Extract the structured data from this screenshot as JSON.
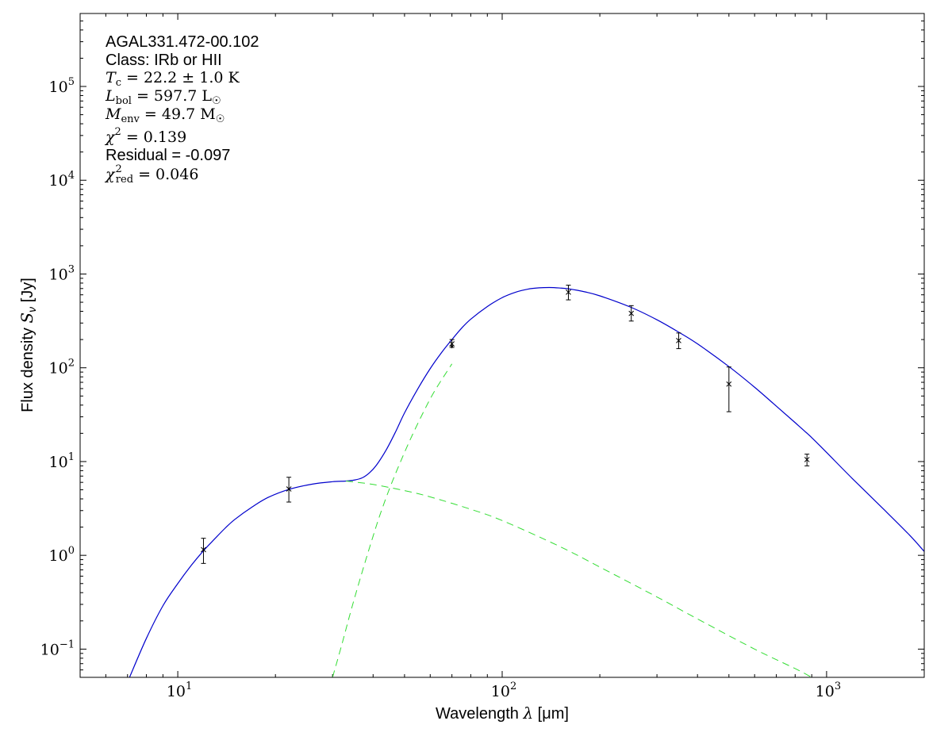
{
  "chart_data": {
    "type": "line",
    "x_scale": "log",
    "y_scale": "log",
    "xlim": [
      5,
      2000
    ],
    "ylim": [
      0.05,
      600000
    ],
    "grid": false,
    "xlabel_text": "Wavelength ",
    "xlabel_symbol": "λ",
    "xlabel_unit": " [μm]",
    "ylabel_text": "Flux density ",
    "ylabel_symbol": "S",
    "ylabel_sub": "ν",
    "ylabel_unit": " [Jy]",
    "x_ticks": [
      {
        "value": 10,
        "base": "10",
        "exp": "1"
      },
      {
        "value": 100,
        "base": "10",
        "exp": "2"
      },
      {
        "value": 1000,
        "base": "10",
        "exp": "3"
      }
    ],
    "y_ticks": [
      {
        "value": 0.1,
        "base": "10",
        "exp": "−1"
      },
      {
        "value": 1,
        "base": "10",
        "exp": "0"
      },
      {
        "value": 10,
        "base": "10",
        "exp": "1"
      },
      {
        "value": 100,
        "base": "10",
        "exp": "2"
      },
      {
        "value": 1000,
        "base": "10",
        "exp": "3"
      },
      {
        "value": 10000,
        "base": "10",
        "exp": "4"
      },
      {
        "value": 100000,
        "base": "10",
        "exp": "5"
      }
    ],
    "colors": {
      "total_fit": "#0000cc",
      "components": "#33dd33",
      "data": "#000000"
    },
    "series": [
      {
        "role": "total-fit",
        "style": "solid",
        "x": [
          7.1,
          8,
          9,
          10,
          11,
          12,
          13,
          14,
          15,
          17,
          19,
          22,
          26,
          30,
          33,
          35,
          37,
          39,
          41,
          44,
          47,
          50,
          55,
          60,
          65,
          70,
          75,
          80,
          90,
          100,
          110,
          120,
          130,
          140,
          150,
          160,
          180,
          200,
          250,
          300,
          350,
          400,
          500,
          600,
          700,
          800,
          900,
          1000,
          1200,
          1500,
          1800,
          2000
        ],
        "y": [
          0.05,
          0.13,
          0.29,
          0.5,
          0.78,
          1.12,
          1.5,
          1.95,
          2.42,
          3.3,
          4.15,
          5.05,
          5.75,
          6.1,
          6.2,
          6.35,
          6.7,
          7.6,
          9.2,
          13.5,
          21,
          33,
          60,
          98,
          145,
          200,
          265,
          330,
          450,
          560,
          640,
          690,
          712,
          718,
          710,
          695,
          645,
          585,
          440,
          325,
          240,
          180,
          103,
          62,
          39,
          26,
          18,
          12.5,
          6.6,
          3.1,
          1.65,
          1.1
        ]
      },
      {
        "role": "component-warm",
        "style": "dashed",
        "x": [
          33,
          40,
          50,
          60,
          80,
          100,
          150,
          200,
          300,
          400,
          600,
          800,
          900
        ],
        "y": [
          6.2,
          5.7,
          4.9,
          4.2,
          3.1,
          2.35,
          1.25,
          0.75,
          0.36,
          0.21,
          0.1,
          0.062,
          0.05
        ]
      },
      {
        "role": "component-cold",
        "style": "dashed",
        "x": [
          30,
          32,
          34,
          36,
          38,
          40,
          42,
          45,
          48,
          52,
          57,
          62,
          70
        ],
        "y": [
          0.05,
          0.11,
          0.24,
          0.48,
          0.9,
          1.6,
          2.7,
          5.2,
          9,
          17,
          33,
          57,
          110
        ]
      }
    ],
    "points": [
      {
        "x": 12,
        "y": 1.15,
        "err_lo": 0.82,
        "err_hi": 1.52,
        "upper_limit": false
      },
      {
        "x": 22,
        "y": 5.1,
        "err_lo": 3.7,
        "err_hi": 6.8,
        "upper_limit": false
      },
      {
        "x": 70,
        "y": 180,
        "err_lo": 165,
        "err_hi": 200,
        "upper_limit": true
      },
      {
        "x": 160,
        "y": 640,
        "err_lo": 530,
        "err_hi": 760,
        "upper_limit": false
      },
      {
        "x": 250,
        "y": 380,
        "err_lo": 315,
        "err_hi": 460,
        "upper_limit": false
      },
      {
        "x": 350,
        "y": 195,
        "err_lo": 160,
        "err_hi": 235,
        "upper_limit": false
      },
      {
        "x": 500,
        "y": 67,
        "err_lo": 34,
        "err_hi": 102,
        "upper_limit": false
      },
      {
        "x": 870,
        "y": 10.5,
        "err_lo": 9.0,
        "err_hi": 12.0,
        "upper_limit": false
      }
    ],
    "annotations": {
      "source": "AGAL331.472-00.102",
      "class_line": "Class: IRb or HII",
      "tc_sym": "T",
      "tc_sub": "c",
      "tc_val": " = 22.2 ± 1.0 K",
      "lbol_sym": "L",
      "lbol_sub": "bol",
      "lbol_val": " = 597.7 L",
      "lbol_unit_sub": "☉",
      "menv_sym": "M",
      "menv_sub": "env",
      "menv_val": " = 49.7 M",
      "menv_unit_sub": "☉",
      "chi_sym": "χ",
      "chi_sup": "2",
      "chi_val": " = 0.139",
      "residual_line": "Residual = -0.097",
      "chired_sym": "χ",
      "chired_sup": "2",
      "chired_sub": "red",
      "chired_val": " = 0.046"
    }
  }
}
